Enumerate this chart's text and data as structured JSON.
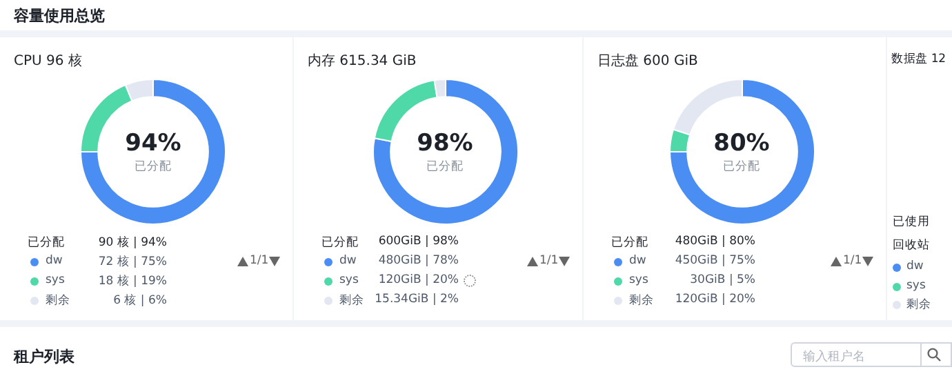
{
  "chart_data": [
    {
      "type": "other",
      "title": "容量使用总览"
    },
    {
      "type": "donut",
      "title": "CPU 96 核",
      "categories": [
        "dw",
        "sys",
        "剩余"
      ],
      "values": [
        72,
        18,
        6
      ],
      "colors": [
        "#4a8ef3",
        "#4fd9a9",
        "#e3e7f2"
      ],
      "value_labels": [
        "72 核 | 75%",
        "18 核 | 19%",
        "6 核 | 6%"
      ],
      "legend": "bottom",
      "annotations": [
        "94%",
        "已分配",
        "已分配",
        "90 核 | 94%",
        "1/1"
      ]
    },
    {
      "type": "donut",
      "title": "内存 615.34 GiB",
      "categories": [
        "dw",
        "sys",
        "剩余"
      ],
      "values": [
        480,
        120,
        15.34
      ],
      "colors": [
        "#4a8ef3",
        "#4fd9a9",
        "#e3e7f2"
      ],
      "value_labels": [
        "480GiB | 78%",
        "120GiB | 20%",
        "15.34GiB | 2%"
      ],
      "legend": "bottom",
      "annotations": [
        "98%",
        "已分配",
        "已分配",
        "600GiB | 98%",
        "1/1"
      ]
    },
    {
      "type": "donut",
      "title": "日志盘 600 GiB",
      "categories": [
        "dw",
        "sys",
        "剩余"
      ],
      "values": [
        450,
        30,
        120
      ],
      "colors": [
        "#4a8ef3",
        "#4fd9a9",
        "#e3e7f2"
      ],
      "value_labels": [
        "450GiB | 75%",
        "30GiB | 5%",
        "120GiB | 20%"
      ],
      "legend": "bottom",
      "annotations": [
        "80%",
        "已分配",
        "已分配",
        "480GiB | 80%",
        "1/1"
      ]
    },
    {
      "type": "other",
      "title": "数据盘 12",
      "categories": [
        "dw",
        "sys",
        "剩余"
      ],
      "colors": [
        "#4a8ef3",
        "#4fd9a9",
        "#e3e7f2"
      ],
      "annotations": [
        "已使用",
        "回收站"
      ]
    },
    {
      "type": "other",
      "title": "租户列表",
      "annotations": [
        "输入租户名"
      ]
    }
  ]
}
